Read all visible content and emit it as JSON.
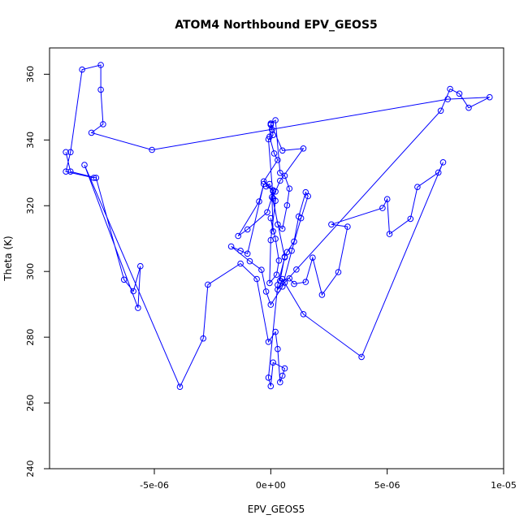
{
  "chart_data": {
    "type": "line",
    "title": "ATOM4 Northbound EPV_GEOS5",
    "xlabel": "EPV_GEOS5",
    "ylabel": "Theta (K)",
    "xlim": [
      -9.5e-06,
      1e-05
    ],
    "ylim": [
      240,
      368
    ],
    "x_ticks": [
      {
        "value": -5e-06,
        "label": "-5e-06"
      },
      {
        "value": 0,
        "label": "0e+00"
      },
      {
        "value": 5e-06,
        "label": "5e-06"
      },
      {
        "value": 1e-05,
        "label": "1e-05"
      }
    ],
    "y_ticks": [
      {
        "value": 240,
        "label": "240"
      },
      {
        "value": 260,
        "label": "260"
      },
      {
        "value": 280,
        "label": "280"
      },
      {
        "value": 300,
        "label": "300"
      },
      {
        "value": 320,
        "label": "320"
      },
      {
        "value": 340,
        "label": "340"
      },
      {
        "value": 360,
        "label": "360"
      }
    ],
    "marker": "open-circle",
    "grid": false,
    "series_color": "#0000ff",
    "series": [
      {
        "x": [
          -8.8e-06,
          -8.6e-06,
          -7.5e-06,
          -6.3e-06,
          -5.9e-06,
          -5.6e-06,
          -5.7e-06,
          -8e-06,
          -3.9e-06,
          -2.9e-06,
          -2.7e-06,
          -1.3e-06,
          -6e-07,
          -1e-07,
          2e-07,
          3e-07,
          4e-07,
          5e-07,
          6e-07,
          1e-07,
          0.0,
          -1e-07,
          3e-07,
          6e-07,
          -5e-08,
          -2e-07,
          1e-07,
          2e-07,
          4e-07,
          1.4e-06,
          5e-07,
          0.0,
          2e-07,
          4e-07,
          6e-07,
          8e-07,
          7e-07,
          5e-07,
          3e-07,
          1e-07,
          -1e-07,
          1e-07,
          0.0,
          5e-08,
          0.0,
          -5e-08,
          1.5e-07,
          3e-07,
          -3e-07,
          1e-07,
          2e-07,
          0.0,
          -5e-08,
          2.5e-07,
          3.5e-07,
          2e-07,
          0.0,
          1e-07,
          5e-08,
          -1.5e-07,
          -1e-06,
          -1.4e-06,
          -5e-07,
          -3e-07,
          -1e-06,
          -1.3e-06,
          -1.7e-06,
          -9e-07,
          -4e-07,
          -2e-07,
          0.0,
          5e-07,
          9e-07,
          1.3e-06,
          1.6e-06,
          1.5e-06,
          1.2e-06,
          1e-06,
          7e-07,
          6e-07,
          4e-07,
          8e-07,
          1e-06,
          1.5e-06,
          1.8e-06,
          2.2e-06,
          2.9e-06,
          3.3e-06,
          2.6e-06,
          4.8e-06,
          5e-06,
          5.1e-06,
          6e-06,
          6.3e-06,
          7.2e-06,
          7.4e-06,
          3.9e-06,
          1.4e-06,
          5e-07,
          3e-07,
          6e-07,
          1.1e-06,
          7.3e-06,
          7.7e-06,
          8.1e-06,
          8.5e-06,
          9.4e-06,
          7.6e-06,
          -5.1e-06,
          -7.7e-06,
          -7.2e-06,
          -7.3e-06,
          -7.3e-06,
          -8.1e-06,
          -8.6e-06,
          -8.8e-06,
          -7.6e-06
        ],
        "y": [
          336.3,
          330.4,
          328.5,
          297.5,
          294.0,
          301.6,
          288.9,
          332.4,
          264.9,
          279.6,
          296.0,
          302.4,
          297.7,
          278.6,
          281.6,
          276.4,
          266.3,
          268.3,
          270.5,
          272.3,
          265.1,
          267.7,
          295.9,
          304.3,
          326.6,
          325.9,
          324.7,
          324.3,
          327.6,
          337.4,
          336.8,
          345.0,
          346.0,
          330.0,
          329.1,
          325.2,
          320.1,
          313.0,
          314.3,
          322.2,
          340.2,
          341.5,
          344.6,
          343.2,
          344.7,
          341.0,
          335.9,
          333.9,
          327.4,
          324.4,
          321.5,
          309.5,
          296.5,
          299.0,
          303.3,
          309.9,
          316.2,
          312.2,
          322.6,
          318.0,
          312.8,
          310.8,
          321.3,
          326.6,
          305.4,
          306.3,
          307.6,
          303.1,
          300.5,
          293.9,
          289.9,
          295.4,
          306.3,
          316.2,
          322.9,
          324.1,
          316.7,
          309.1,
          305.9,
          304.5,
          297.2,
          297.9,
          296.2,
          296.8,
          304.2,
          292.9,
          299.8,
          313.6,
          314.3,
          319.3,
          322.0,
          311.4,
          316.0,
          325.7,
          330.1,
          333.2,
          274.0,
          287.0,
          297.7,
          294.5,
          296.6,
          300.6,
          348.9,
          355.5,
          354.1,
          349.8,
          353.0,
          352.4,
          337.0,
          342.2,
          344.8,
          355.3,
          362.8,
          361.4,
          336.3,
          330.4,
          328.5
        ]
      }
    ]
  }
}
